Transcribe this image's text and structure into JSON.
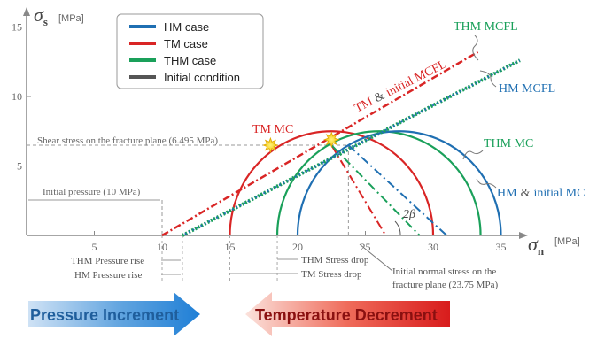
{
  "chart_data": {
    "type": "line",
    "x_axis": {
      "symbol": "σ",
      "subscript": "n",
      "unit": "[MPa]",
      "ticks": [
        5,
        10,
        15,
        20,
        25,
        30,
        35
      ],
      "range": [
        -10,
        38
      ]
    },
    "y_axis": {
      "symbol": "σ",
      "subscript": "s",
      "unit": "[MPa]",
      "ticks": [
        5,
        10,
        15
      ],
      "range": [
        0,
        16
      ]
    },
    "legend": {
      "placement": "top-left",
      "entries": [
        {
          "label": "HM case",
          "color": "#1f6fb2"
        },
        {
          "label": "TM case",
          "color": "#d92525"
        },
        {
          "label": "THM case",
          "color": "#1aa05a"
        },
        {
          "label": "Initial condition",
          "color": "#555555"
        }
      ]
    },
    "mohr_circles": [
      {
        "name": "TM MC",
        "center": 22.5,
        "radius": 7.5,
        "color": "#d92525",
        "label": "TM MC"
      },
      {
        "name": "THM MC",
        "center": 26.0,
        "radius": 7.5,
        "color": "#1aa05a",
        "label": "THM MC"
      },
      {
        "name": "HM & initial MC",
        "center": 27.5,
        "radius": 7.5,
        "color": "#1f6fb2",
        "label_a": "HM",
        "label_amp": "&",
        "label_b": "initial MC"
      }
    ],
    "failure_lines": [
      {
        "name": "TM & initial MCFL",
        "x": [
          10,
          33.3
        ],
        "y": [
          0,
          13.2
        ],
        "color": "#d92525",
        "label_a": "TM",
        "label_amp": "&",
        "label_b": "initial MCFL"
      },
      {
        "name": "THM MCFL",
        "x": [
          11.5,
          36.4
        ],
        "y": [
          0,
          12.6
        ],
        "color": "#1aa05a",
        "label": "THM MCFL"
      },
      {
        "name": "HM MCFL",
        "x": [
          11.5,
          36.4
        ],
        "y": [
          0,
          12.6
        ],
        "color": "#1f6fb2",
        "label": "HM MCFL"
      }
    ],
    "diameter_lines": [
      {
        "x": [
          22.5,
          26.5
        ],
        "y": [
          6.495,
          0
        ],
        "color": "#d92525"
      },
      {
        "x": [
          22.5,
          29.0
        ],
        "y": [
          6.495,
          0
        ],
        "color": "#1aa05a"
      },
      {
        "x": [
          23.75,
          31.0
        ],
        "y": [
          6.495,
          0
        ],
        "color": "#1f6fb2"
      }
    ],
    "contact_points": [
      {
        "x": 18.0,
        "y": 6.495
      },
      {
        "x": 22.5,
        "y": 6.9
      }
    ],
    "reference": {
      "shear_stress": 6.495,
      "shear_label": "Shear stress on the fracture plane (6.495 MPa)",
      "initial_pressure": 10,
      "initial_pressure_label": "Initial pressure (10 MPa)",
      "initial_normal_stress": 23.75,
      "initial_normal_label_1": "Initial normal stress on the",
      "initial_normal_label_2": "fracture plane (23.75 MPa)",
      "angle_label": "2β"
    },
    "annotations": {
      "thm_pressure_rise": "THM Pressure rise",
      "hm_pressure_rise": "HM Pressure rise",
      "thm_stress_drop": "THM Stress drop",
      "tm_stress_drop": "TM Stress drop"
    }
  },
  "banners": {
    "pressure": "Pressure Increment",
    "temperature": "Temperature Decrement"
  }
}
